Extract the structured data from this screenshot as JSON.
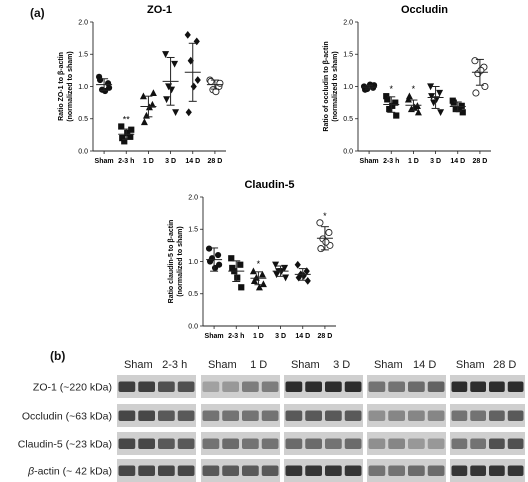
{
  "panel_labels": {
    "a": "(a)",
    "b": "(b)"
  },
  "categories": [
    "Sham",
    "2-3 h",
    "1 D",
    "3 D",
    "14 D",
    "28 D"
  ],
  "chart_data": [
    {
      "type": "scatter",
      "title": "ZO-1",
      "ylabel_line1": "Ratio ZO-1 to β-actin",
      "ylabel_line2": "(normalized to sham)",
      "ylim": [
        0,
        2.0
      ],
      "yticks": [
        "0.0",
        "0.5",
        "1.0",
        "1.5",
        "2.0"
      ],
      "categories": [
        "Sham",
        "2-3 h",
        "1 D",
        "3 D",
        "14 D",
        "28 D"
      ],
      "markers": [
        "circle",
        "square",
        "triangle",
        "triangle-down",
        "diamond",
        "open-circle"
      ],
      "points": [
        [
          1.15,
          1.05,
          0.95,
          0.98,
          1.1,
          0.93
        ],
        [
          0.38,
          0.22,
          0.15,
          0.33,
          0.2,
          0.28
        ],
        [
          0.85,
          0.72,
          0.55,
          0.9,
          0.45,
          0.68
        ],
        [
          1.5,
          1.35,
          1.0,
          0.6,
          0.8,
          0.95
        ],
        [
          1.8,
          1.7,
          1.4,
          1.1,
          0.6,
          1.0
        ],
        [
          1.1,
          1.0,
          0.95,
          1.05,
          1.08,
          0.92
        ]
      ],
      "mean": [
        1.03,
        0.26,
        0.69,
        1.08,
        1.22,
        1.03
      ],
      "sd": [
        0.09,
        0.08,
        0.16,
        0.37,
        0.45,
        0.07
      ],
      "significance": [
        "",
        "**",
        "",
        "",
        "",
        ""
      ]
    },
    {
      "type": "scatter",
      "title": "Occludin",
      "ylabel_line1": "Ratio of occludin to β-actin",
      "ylabel_line2": "(normalized to sham)",
      "ylim": [
        0,
        2.0
      ],
      "yticks": [
        "0.0",
        "0.5",
        "1.0",
        "1.5",
        "2.0"
      ],
      "categories": [
        "Sham",
        "2-3 h",
        "1 D",
        "3 D",
        "14 D",
        "28 D"
      ],
      "markers": [
        "circle",
        "square",
        "triangle",
        "triangle-down",
        "square",
        "open-circle"
      ],
      "points": [
        [
          1.0,
          0.98,
          0.96,
          1.02,
          0.95,
          1.03
        ],
        [
          0.85,
          0.75,
          0.65,
          0.55,
          0.8,
          0.7
        ],
        [
          0.8,
          0.7,
          0.65,
          0.6,
          0.85,
          0.68
        ],
        [
          1.0,
          0.9,
          0.75,
          0.6,
          0.85,
          0.8
        ],
        [
          0.78,
          0.7,
          0.65,
          0.6,
          0.75,
          0.65
        ],
        [
          1.4,
          1.3,
          1.2,
          1.0,
          0.9,
          1.25
        ]
      ],
      "mean": [
        0.99,
        0.72,
        0.71,
        0.83,
        0.69,
        1.22
      ],
      "sd": [
        0.03,
        0.12,
        0.08,
        0.17,
        0.07,
        0.2
      ],
      "significance": [
        "",
        "*",
        "*",
        "",
        "",
        ""
      ]
    },
    {
      "type": "scatter",
      "title": "Claudin-5",
      "ylabel_line1": "Ratio claudin-5 to β-actin",
      "ylabel_line2": "(normalized to sham)",
      "ylim": [
        0,
        2.0
      ],
      "yticks": [
        "0.0",
        "0.5",
        "1.0",
        "1.5",
        "2.0"
      ],
      "categories": [
        "Sham",
        "2-3 h",
        "1 D",
        "3 D",
        "14 D",
        "28 D"
      ],
      "markers": [
        "circle",
        "square",
        "triangle",
        "triangle-down",
        "diamond",
        "open-circle"
      ],
      "points": [
        [
          1.2,
          1.1,
          1.05,
          0.95,
          1.0,
          0.9
        ],
        [
          1.05,
          0.95,
          0.85,
          0.6,
          0.9,
          0.75
        ],
        [
          0.85,
          0.8,
          0.75,
          0.65,
          0.7,
          0.6
        ],
        [
          0.95,
          0.9,
          0.85,
          0.75,
          0.8,
          0.85
        ],
        [
          0.95,
          0.85,
          0.8,
          0.7,
          0.75,
          0.78
        ],
        [
          1.6,
          1.45,
          1.35,
          1.25,
          1.2,
          1.3
        ]
      ],
      "mean": [
        1.03,
        0.85,
        0.74,
        0.85,
        0.8,
        1.36
      ],
      "sd": [
        0.18,
        0.16,
        0.1,
        0.08,
        0.09,
        0.18
      ],
      "significance": [
        "",
        "",
        "*",
        "",
        "",
        "*"
      ]
    }
  ],
  "blot": {
    "groups": [
      {
        "labels": [
          "Sham",
          "2-3 h"
        ]
      },
      {
        "labels": [
          "Sham",
          "1 D"
        ]
      },
      {
        "labels": [
          "Sham",
          "3 D"
        ]
      },
      {
        "labels": [
          "Sham",
          "14 D"
        ]
      },
      {
        "labels": [
          "Sham",
          "28 D"
        ]
      }
    ],
    "rows": [
      {
        "label": "ZO-1 (~220 kDa)",
        "intensity": [
          [
            0.85,
            0.85,
            0.75,
            0.75
          ],
          [
            0.3,
            0.35,
            0.5,
            0.5
          ],
          [
            0.95,
            0.95,
            0.95,
            0.95
          ],
          [
            0.55,
            0.55,
            0.6,
            0.65
          ],
          [
            0.95,
            0.95,
            0.95,
            0.95
          ]
        ]
      },
      {
        "label": "Occludin (~63 kDa)",
        "intensity": [
          [
            0.8,
            0.8,
            0.7,
            0.7
          ],
          [
            0.55,
            0.55,
            0.55,
            0.55
          ],
          [
            0.7,
            0.7,
            0.7,
            0.7
          ],
          [
            0.4,
            0.45,
            0.45,
            0.45
          ],
          [
            0.55,
            0.55,
            0.65,
            0.7
          ]
        ]
      },
      {
        "label": "Claudin-5 (~23 kDa)",
        "intensity": [
          [
            0.8,
            0.8,
            0.7,
            0.7
          ],
          [
            0.55,
            0.6,
            0.55,
            0.55
          ],
          [
            0.6,
            0.6,
            0.55,
            0.6
          ],
          [
            0.4,
            0.45,
            0.35,
            0.35
          ],
          [
            0.55,
            0.55,
            0.75,
            0.75
          ]
        ]
      },
      {
        "label_prefix": "β",
        "label": "-actin (~ 42 kDa)",
        "intensity": [
          [
            0.8,
            0.8,
            0.8,
            0.8
          ],
          [
            0.7,
            0.7,
            0.7,
            0.7
          ],
          [
            0.9,
            0.9,
            0.9,
            0.9
          ],
          [
            0.55,
            0.55,
            0.6,
            0.6
          ],
          [
            0.9,
            0.9,
            0.9,
            0.9
          ]
        ]
      }
    ]
  }
}
